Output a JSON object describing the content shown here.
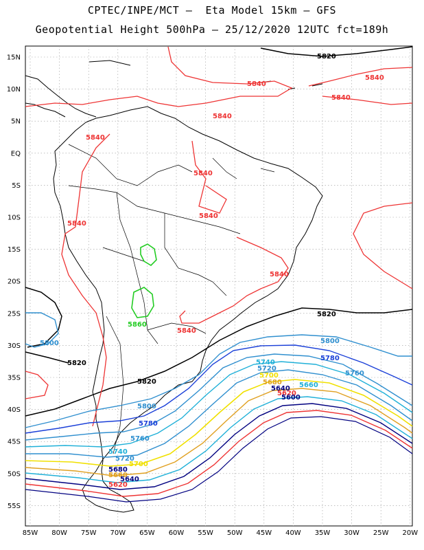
{
  "header": {
    "line1": "CPTEC/INPE/MCT –  Eta Model 15km – GFS",
    "line2": "Geopotential Height 500hPa – 25/12/2020 12UTC fct=189h"
  },
  "axes": {
    "lat_labels": [
      "15N",
      "10N",
      "5N",
      "EQ",
      "5S",
      "10S",
      "15S",
      "20S",
      "25S",
      "30S",
      "35S",
      "40S",
      "45S",
      "50S",
      "55S"
    ],
    "lon_labels": [
      "85W",
      "80W",
      "75W",
      "70W",
      "65W",
      "60W",
      "55W",
      "50W",
      "45W",
      "40W",
      "35W",
      "30W",
      "25W",
      "20W"
    ]
  },
  "contour_labels": {
    "c5820": "5820",
    "c5840": "5840",
    "c5800": "5800",
    "c5780": "5780",
    "c5760": "5760",
    "c5740": "5740",
    "c5720": "5720",
    "c5700": "5700",
    "c5680": "5680",
    "c5660": "5660",
    "c5640": "5640",
    "c5620": "5620",
    "c5600": "5600",
    "c5860": "5860"
  },
  "colors": {
    "c5840": "#ee3333",
    "c5820": "#000000",
    "c5800": "#2f8fcf",
    "c5780": "#1a3fd8",
    "c5760": "#2f8fcf",
    "c5740": "#1fb0d8",
    "c5720": "#2f8fcf",
    "c5700": "#f0e000",
    "c5680": "#e0a020",
    "c5660": "#1fb0d8",
    "c5640": "#000080",
    "c5620": "#ee3333",
    "c5860": "#22cc22"
  }
}
